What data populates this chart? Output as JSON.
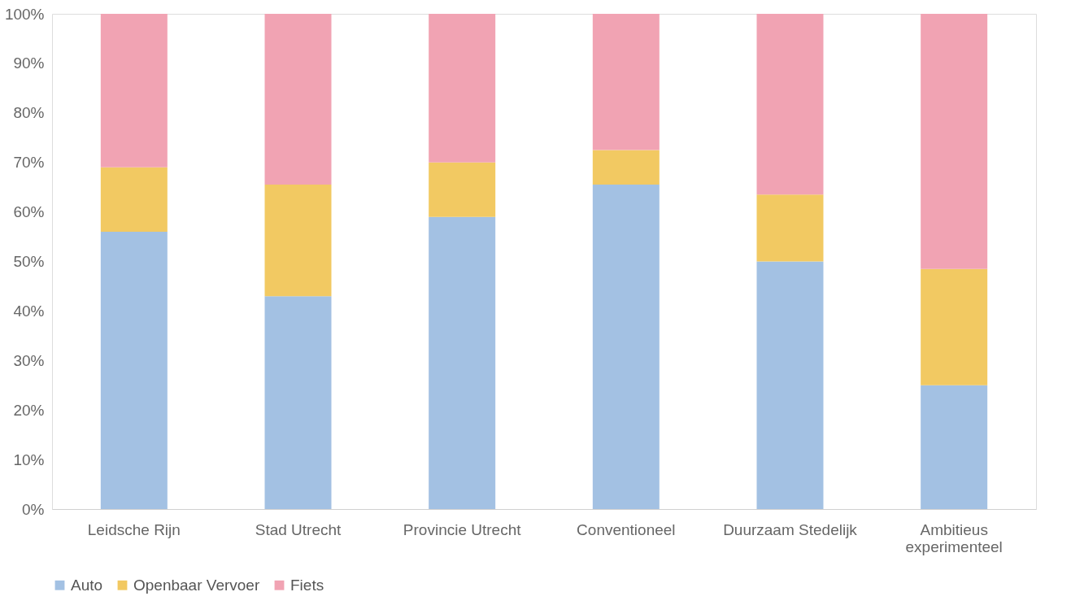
{
  "chart_data": {
    "type": "bar",
    "stacked": true,
    "categories": [
      "Leidsche Rijn",
      "Stad Utrecht",
      "Provincie Utrecht",
      "Conventioneel",
      "Duurzaam Stedelijk",
      "Ambitieus experimenteel"
    ],
    "series": [
      {
        "name": "Auto",
        "color": "#a3c1e3",
        "values": [
          56,
          43,
          59,
          65.5,
          50,
          25
        ]
      },
      {
        "name": "Openbaar Vervoer",
        "color": "#f2c962",
        "values": [
          13,
          22.5,
          11,
          7,
          13.5,
          23.5
        ]
      },
      {
        "name": "Fiets",
        "color": "#f1a3b3",
        "values": [
          31,
          34.5,
          30,
          27.5,
          36.5,
          51.5
        ]
      }
    ],
    "ylim": [
      0,
      100
    ],
    "yticks": [
      {
        "value": 0,
        "label": "0%"
      },
      {
        "value": 10,
        "label": "10%"
      },
      {
        "value": 20,
        "label": "20%"
      },
      {
        "value": 30,
        "label": "30%"
      },
      {
        "value": 40,
        "label": "40%"
      },
      {
        "value": 50,
        "label": "50%"
      },
      {
        "value": 60,
        "label": "60%"
      },
      {
        "value": 70,
        "label": "70%"
      },
      {
        "value": 80,
        "label": "80%"
      },
      {
        "value": 90,
        "label": "90%"
      },
      {
        "value": 100,
        "label": "100%"
      }
    ],
    "grid": false,
    "legend": "bottom"
  }
}
